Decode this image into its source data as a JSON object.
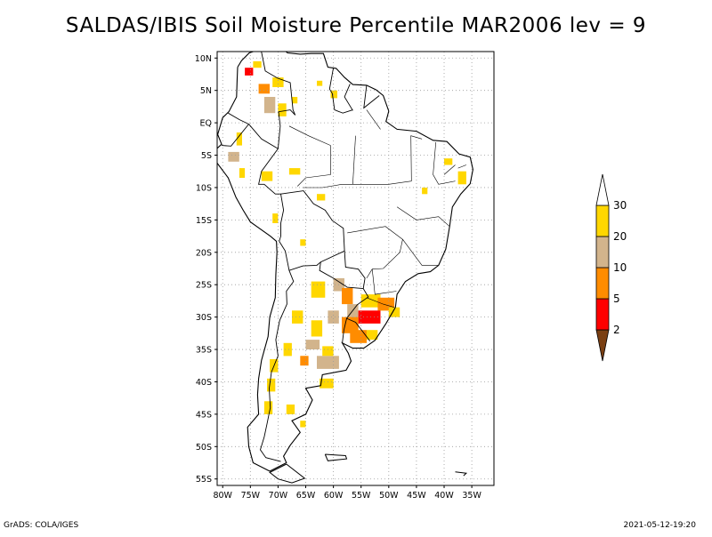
{
  "title": "SALDAS/IBIS Soil Moisture Percentile MAR2006 lev = 9",
  "footer": {
    "left": "GrADS: COLA/IGES",
    "right": "2021-05-12-19:20"
  },
  "chart_data": {
    "type": "heatmap",
    "x_range": [
      -81,
      -31
    ],
    "y_range": [
      -56,
      11
    ],
    "x_ticks": [
      -80,
      -75,
      -70,
      -65,
      -60,
      -55,
      -50,
      -45,
      -40,
      -35
    ],
    "x_tick_labels": [
      "80W",
      "75W",
      "70W",
      "65W",
      "60W",
      "55W",
      "50W",
      "45W",
      "40W",
      "35W"
    ],
    "y_ticks": [
      10,
      5,
      0,
      -5,
      -10,
      -15,
      -20,
      -25,
      -30,
      -35,
      -40,
      -45,
      -50,
      -55
    ],
    "y_tick_labels": [
      "10N",
      "5N",
      "EQ",
      "5S",
      "10S",
      "15S",
      "20S",
      "25S",
      "30S",
      "35S",
      "40S",
      "45S",
      "50S",
      "55S"
    ],
    "grid": true,
    "legend": {
      "placement": "right",
      "colors": [
        "#7a3f12",
        "#ff0000",
        "#ff8c00",
        "#d2b48c",
        "#ffd700",
        "#ffffff"
      ],
      "labels": [
        "2",
        "5",
        "10",
        "20",
        "30"
      ]
    },
    "cells": [
      {
        "lon": -76.0,
        "lat": 8.5,
        "w": 1.5,
        "h": 1.2,
        "cls": 1
      },
      {
        "lon": -74.5,
        "lat": 9.5,
        "w": 1.5,
        "h": 1.0,
        "cls": 4
      },
      {
        "lon": -73.5,
        "lat": 6.0,
        "w": 2.0,
        "h": 1.5,
        "cls": 2
      },
      {
        "lon": -72.5,
        "lat": 4.0,
        "w": 2.0,
        "h": 2.5,
        "cls": 3
      },
      {
        "lon": -71.0,
        "lat": 7.0,
        "w": 2.0,
        "h": 1.5,
        "cls": 4
      },
      {
        "lon": -70.0,
        "lat": 3.0,
        "w": 1.5,
        "h": 2.0,
        "cls": 4
      },
      {
        "lon": -67.5,
        "lat": 4.0,
        "w": 1.0,
        "h": 1.0,
        "cls": 4
      },
      {
        "lon": -60.5,
        "lat": 5.0,
        "w": 1.2,
        "h": 1.2,
        "cls": 4
      },
      {
        "lon": -63.0,
        "lat": 6.5,
        "w": 1.0,
        "h": 0.8,
        "cls": 4
      },
      {
        "lon": -77.5,
        "lat": -1.5,
        "w": 1.0,
        "h": 2.0,
        "cls": 4
      },
      {
        "lon": -79.0,
        "lat": -4.5,
        "w": 2.0,
        "h": 1.5,
        "cls": 3
      },
      {
        "lon": -77.0,
        "lat": -7.0,
        "w": 1.0,
        "h": 1.5,
        "cls": 4
      },
      {
        "lon": -73.0,
        "lat": -7.5,
        "w": 2.0,
        "h": 1.5,
        "cls": 4
      },
      {
        "lon": -68.0,
        "lat": -7.0,
        "w": 2.0,
        "h": 1.0,
        "cls": 4
      },
      {
        "lon": -63.0,
        "lat": -11.0,
        "w": 1.5,
        "h": 1.0,
        "cls": 4
      },
      {
        "lon": -71.0,
        "lat": -14.0,
        "w": 1.0,
        "h": 1.5,
        "cls": 4
      },
      {
        "lon": -66.0,
        "lat": -18.0,
        "w": 1.0,
        "h": 1.0,
        "cls": 4
      },
      {
        "lon": -40.0,
        "lat": -5.5,
        "w": 1.5,
        "h": 1.0,
        "cls": 4
      },
      {
        "lon": -37.5,
        "lat": -7.5,
        "w": 1.5,
        "h": 2.0,
        "cls": 4
      },
      {
        "lon": -44.0,
        "lat": -10.0,
        "w": 1.0,
        "h": 1.0,
        "cls": 4
      },
      {
        "lon": -64.0,
        "lat": -24.5,
        "w": 2.5,
        "h": 2.5,
        "cls": 4
      },
      {
        "lon": -60.0,
        "lat": -24.0,
        "w": 2.0,
        "h": 2.0,
        "cls": 3
      },
      {
        "lon": -58.5,
        "lat": -25.5,
        "w": 2.0,
        "h": 2.5,
        "cls": 2
      },
      {
        "lon": -57.5,
        "lat": -28.0,
        "w": 2.0,
        "h": 2.0,
        "cls": 3
      },
      {
        "lon": -55.0,
        "lat": -26.5,
        "w": 3.5,
        "h": 2.0,
        "cls": 4
      },
      {
        "lon": -52.0,
        "lat": -27.0,
        "w": 3.0,
        "h": 2.0,
        "cls": 2
      },
      {
        "lon": -50.0,
        "lat": -28.5,
        "w": 2.0,
        "h": 1.5,
        "cls": 4
      },
      {
        "lon": -55.5,
        "lat": -29.0,
        "w": 4.0,
        "h": 2.0,
        "cls": 1
      },
      {
        "lon": -58.5,
        "lat": -30.0,
        "w": 3.0,
        "h": 2.5,
        "cls": 2
      },
      {
        "lon": -61.0,
        "lat": -29.0,
        "w": 2.0,
        "h": 2.0,
        "cls": 3
      },
      {
        "lon": -57.0,
        "lat": -32.0,
        "w": 3.0,
        "h": 2.0,
        "cls": 2
      },
      {
        "lon": -54.0,
        "lat": -32.0,
        "w": 2.0,
        "h": 1.5,
        "cls": 4
      },
      {
        "lon": -64.0,
        "lat": -30.5,
        "w": 2.0,
        "h": 2.5,
        "cls": 4
      },
      {
        "lon": -67.5,
        "lat": -29.0,
        "w": 2.0,
        "h": 2.0,
        "cls": 4
      },
      {
        "lon": -65.0,
        "lat": -33.5,
        "w": 2.5,
        "h": 1.5,
        "cls": 3
      },
      {
        "lon": -63.0,
        "lat": -36.0,
        "w": 4.0,
        "h": 2.0,
        "cls": 3
      },
      {
        "lon": -62.0,
        "lat": -34.5,
        "w": 2.0,
        "h": 1.5,
        "cls": 4
      },
      {
        "lon": -66.0,
        "lat": -36.0,
        "w": 1.5,
        "h": 1.5,
        "cls": 2
      },
      {
        "lon": -69.0,
        "lat": -34.0,
        "w": 1.5,
        "h": 2.0,
        "cls": 4
      },
      {
        "lon": -71.5,
        "lat": -36.5,
        "w": 1.5,
        "h": 2.0,
        "cls": 4
      },
      {
        "lon": -72.0,
        "lat": -39.5,
        "w": 1.5,
        "h": 2.0,
        "cls": 4
      },
      {
        "lon": -62.5,
        "lat": -39.5,
        "w": 2.5,
        "h": 1.5,
        "cls": 4
      },
      {
        "lon": -72.5,
        "lat": -43.0,
        "w": 1.5,
        "h": 2.0,
        "cls": 4
      },
      {
        "lon": -68.5,
        "lat": -43.5,
        "w": 1.5,
        "h": 1.5,
        "cls": 4
      },
      {
        "lon": -66.0,
        "lat": -46.0,
        "w": 1.0,
        "h": 1.0,
        "cls": 4
      }
    ],
    "outline": [
      [
        -77.3,
        8.6
      ],
      [
        -76.6,
        9.6
      ],
      [
        -75.2,
        10.8
      ],
      [
        -73.1,
        11.4
      ],
      [
        -71.5,
        12.4
      ],
      [
        -71.0,
        11.6
      ],
      [
        -70.0,
        12.2
      ],
      [
        -68.3,
        10.8
      ],
      [
        -66.0,
        10.6
      ],
      [
        -64.0,
        10.7
      ],
      [
        -61.8,
        10.7
      ],
      [
        -61.0,
        8.6
      ],
      [
        -59.5,
        8.4
      ],
      [
        -58.0,
        7.0
      ],
      [
        -56.5,
        5.9
      ],
      [
        -54.0,
        5.8
      ],
      [
        -52.3,
        5.1
      ],
      [
        -51.0,
        4.2
      ],
      [
        -50.0,
        1.8
      ],
      [
        -50.5,
        0.2
      ],
      [
        -48.5,
        -1.0
      ],
      [
        -45.0,
        -1.3
      ],
      [
        -42.0,
        -2.7
      ],
      [
        -39.5,
        -2.9
      ],
      [
        -37.3,
        -4.8
      ],
      [
        -35.3,
        -5.3
      ],
      [
        -34.8,
        -7.2
      ],
      [
        -35.3,
        -9.4
      ],
      [
        -37.0,
        -11.0
      ],
      [
        -38.5,
        -13.0
      ],
      [
        -39.0,
        -16.0
      ],
      [
        -39.7,
        -19.5
      ],
      [
        -41.0,
        -22.0
      ],
      [
        -42.5,
        -23.0
      ],
      [
        -44.7,
        -23.3
      ],
      [
        -47.0,
        -24.5
      ],
      [
        -48.5,
        -26.5
      ],
      [
        -48.8,
        -28.5
      ],
      [
        -50.5,
        -31.0
      ],
      [
        -52.5,
        -33.6
      ],
      [
        -54.5,
        -34.8
      ],
      [
        -56.5,
        -34.8
      ],
      [
        -58.4,
        -34.0
      ],
      [
        -57.3,
        -35.6
      ],
      [
        -56.8,
        -36.8
      ],
      [
        -57.7,
        -38.2
      ],
      [
        -62.0,
        -38.9
      ],
      [
        -62.3,
        -40.6
      ],
      [
        -65.0,
        -41.0
      ],
      [
        -63.8,
        -42.8
      ],
      [
        -65.0,
        -45.0
      ],
      [
        -67.5,
        -46.0
      ],
      [
        -66.0,
        -47.8
      ],
      [
        -67.8,
        -49.8
      ],
      [
        -69.0,
        -51.5
      ],
      [
        -68.5,
        -52.5
      ],
      [
        -71.5,
        -53.8
      ],
      [
        -74.5,
        -52.5
      ],
      [
        -75.3,
        -50.0
      ],
      [
        -75.5,
        -47.0
      ],
      [
        -73.5,
        -45.0
      ],
      [
        -73.7,
        -42.0
      ],
      [
        -73.5,
        -39.5
      ],
      [
        -73.0,
        -36.7
      ],
      [
        -71.8,
        -33.0
      ],
      [
        -71.5,
        -30.0
      ],
      [
        -70.5,
        -27.0
      ],
      [
        -70.4,
        -23.5
      ],
      [
        -70.2,
        -20.0
      ],
      [
        -70.3,
        -18.3
      ],
      [
        -71.4,
        -17.5
      ],
      [
        -75.0,
        -15.3
      ],
      [
        -76.3,
        -13.5
      ],
      [
        -77.6,
        -11.5
      ],
      [
        -79.0,
        -8.5
      ],
      [
        -81.2,
        -6.0
      ],
      [
        -81.3,
        -4.2
      ],
      [
        -80.2,
        -3.3
      ],
      [
        -80.9,
        -1.8
      ],
      [
        -80.0,
        0.8
      ],
      [
        -78.9,
        1.7
      ],
      [
        -77.5,
        4.0
      ],
      [
        -77.4,
        6.5
      ],
      [
        -77.3,
        8.6
      ]
    ],
    "borders": [
      [
        [
          -73.1,
          11.4
        ],
        [
          -72.3,
          8.0
        ],
        [
          -70.1,
          6.9
        ],
        [
          -67.8,
          6.2
        ],
        [
          -67.3,
          2.0
        ],
        [
          -66.9,
          1.2
        ]
      ],
      [
        [
          -60.0,
          8.5
        ],
        [
          -60.7,
          5.2
        ],
        [
          -60.2,
          4.5
        ],
        [
          -59.8,
          2.0
        ],
        [
          -58.3,
          1.5
        ],
        [
          -56.5,
          2.0
        ]
      ],
      [
        [
          -57.0,
          6.0
        ],
        [
          -58.0,
          4.0
        ],
        [
          -56.5,
          1.9
        ]
      ],
      [
        [
          -54.0,
          5.8
        ],
        [
          -54.5,
          2.3
        ],
        [
          -51.7,
          4.2
        ]
      ],
      [
        [
          -66.9,
          1.2
        ],
        [
          -67.8,
          2.0
        ],
        [
          -69.9,
          1.7
        ],
        [
          -69.6,
          -0.5
        ],
        [
          -70.0,
          -4.0
        ]
      ],
      [
        [
          -79.0,
          1.5
        ],
        [
          -77.0,
          0.5
        ],
        [
          -75.3,
          -0.2
        ]
      ],
      [
        [
          -75.3,
          -0.2
        ],
        [
          -78.5,
          -3.6
        ],
        [
          -80.2,
          -3.5
        ]
      ],
      [
        [
          -75.3,
          -0.2
        ],
        [
          -73.0,
          -2.5
        ],
        [
          -70.0,
          -4.0
        ],
        [
          -73.0,
          -7.5
        ],
        [
          -73.5,
          -9.5
        ],
        [
          -72.5,
          -9.5
        ],
        [
          -70.5,
          -11.0
        ],
        [
          -69.5,
          -11.0
        ],
        [
          -69.0,
          -13.5
        ],
        [
          -69.5,
          -15.5
        ],
        [
          -69.5,
          -17.5
        ],
        [
          -69.8,
          -18.3
        ]
      ],
      [
        [
          -69.5,
          -11.0
        ],
        [
          -65.4,
          -10.5
        ],
        [
          -63.6,
          -12.5
        ],
        [
          -61.5,
          -13.5
        ],
        [
          -60.2,
          -15.1
        ],
        [
          -58.2,
          -16.3
        ],
        [
          -58.0,
          -19.8
        ]
      ],
      [
        [
          -69.8,
          -18.3
        ],
        [
          -68.7,
          -19.8
        ],
        [
          -68.0,
          -22.8
        ],
        [
          -65.5,
          -22.1
        ],
        [
          -63.0,
          -22.0
        ],
        [
          -62.3,
          -21.5
        ],
        [
          -58.0,
          -19.8
        ]
      ],
      [
        [
          -68.0,
          -22.8
        ],
        [
          -67.2,
          -24.5
        ],
        [
          -68.5,
          -26.0
        ],
        [
          -68.4,
          -28.0
        ],
        [
          -69.7,
          -30.5
        ],
        [
          -70.4,
          -33.5
        ],
        [
          -70.0,
          -36.0
        ],
        [
          -71.2,
          -38.5
        ],
        [
          -71.6,
          -41.0
        ],
        [
          -71.4,
          -44.0
        ],
        [
          -72.0,
          -46.5
        ],
        [
          -72.5,
          -48.5
        ],
        [
          -73.2,
          -50.5
        ],
        [
          -72.2,
          -51.7
        ],
        [
          -69.5,
          -52.3
        ]
      ],
      [
        [
          -62.3,
          -21.5
        ],
        [
          -62.5,
          -22.8
        ],
        [
          -60.0,
          -24.0
        ],
        [
          -57.5,
          -25.4
        ],
        [
          -54.6,
          -25.6
        ]
      ],
      [
        [
          -58.0,
          -19.8
        ],
        [
          -57.8,
          -22.3
        ],
        [
          -55.5,
          -22.6
        ],
        [
          -54.3,
          -24.0
        ],
        [
          -54.6,
          -25.6
        ]
      ],
      [
        [
          -54.6,
          -25.6
        ],
        [
          -53.7,
          -26.9
        ],
        [
          -55.7,
          -28.1
        ],
        [
          -57.6,
          -30.2
        ],
        [
          -56.0,
          -30.8
        ],
        [
          -53.4,
          -33.7
        ]
      ],
      [
        [
          -58.4,
          -34.0
        ],
        [
          -58.1,
          -32.0
        ],
        [
          -57.6,
          -30.2
        ]
      ]
    ],
    "internal": [
      [
        [
          -65.5,
          -10.0
        ],
        [
          -62.0,
          -10.0
        ],
        [
          -58.5,
          -9.5
        ],
        [
          -50.0,
          -9.5
        ],
        [
          -45.9,
          -9.0
        ]
      ],
      [
        [
          -57.5,
          -17.0
        ],
        [
          -50.6,
          -16.0
        ],
        [
          -47.5,
          -18.0
        ],
        [
          -48.0,
          -20.0
        ],
        [
          -51.0,
          -22.5
        ],
        [
          -53.0,
          -22.6
        ],
        [
          -54.0,
          -24.0
        ]
      ],
      [
        [
          -45.9,
          -9.0
        ],
        [
          -46.0,
          -2.0
        ],
        [
          -44.0,
          -2.5
        ]
      ],
      [
        [
          -48.5,
          -13.0
        ],
        [
          -45.0,
          -15.0
        ],
        [
          -41.0,
          -14.5
        ],
        [
          -39.0,
          -16.0
        ]
      ],
      [
        [
          -47.5,
          -18.0
        ],
        [
          -44.0,
          -22.0
        ],
        [
          -41.0,
          -22.0
        ]
      ],
      [
        [
          -53.0,
          -22.6
        ],
        [
          -52.5,
          -26.5
        ],
        [
          -48.6,
          -26.0
        ]
      ],
      [
        [
          -54.0,
          -27.0
        ],
        [
          -51.0,
          -28.0
        ],
        [
          -49.0,
          -28.5
        ]
      ],
      [
        [
          -51.5,
          -1.0
        ],
        [
          -54.0,
          2.0
        ]
      ],
      [
        [
          -60.5,
          -3.5
        ],
        [
          -60.5,
          -8.0
        ],
        [
          -65.0,
          -8.5
        ],
        [
          -66.5,
          -9.8
        ]
      ],
      [
        [
          -60.5,
          -3.5
        ],
        [
          -64.5,
          -2.0
        ],
        [
          -68.0,
          -0.5
        ]
      ],
      [
        [
          -56.0,
          -2.0
        ],
        [
          -56.5,
          -9.5
        ]
      ],
      [
        [
          -41.5,
          -3.0
        ],
        [
          -42.0,
          -8.0
        ],
        [
          -41.0,
          -9.5
        ],
        [
          -38.0,
          -9.0
        ]
      ],
      [
        [
          -38.0,
          -6.5
        ],
        [
          -40.0,
          -8.0
        ]
      ],
      [
        [
          -36.0,
          -6.5
        ],
        [
          -37.5,
          -7.0
        ]
      ]
    ],
    "islands": [
      [
        [
          -68.5,
          -52.7
        ],
        [
          -65.2,
          -54.9
        ],
        [
          -67.5,
          -55.6
        ],
        [
          -70.0,
          -55.0
        ],
        [
          -71.5,
          -54.0
        ],
        [
          -68.5,
          -52.7
        ]
      ],
      [
        [
          -61.5,
          -51.2
        ],
        [
          -57.8,
          -51.4
        ],
        [
          -57.6,
          -51.9
        ],
        [
          -61.0,
          -52.2
        ],
        [
          -61.5,
          -51.2
        ]
      ],
      [
        [
          -38.0,
          -53.9
        ],
        [
          -36.0,
          -54.1
        ],
        [
          -36.5,
          -54.5
        ]
      ]
    ]
  }
}
